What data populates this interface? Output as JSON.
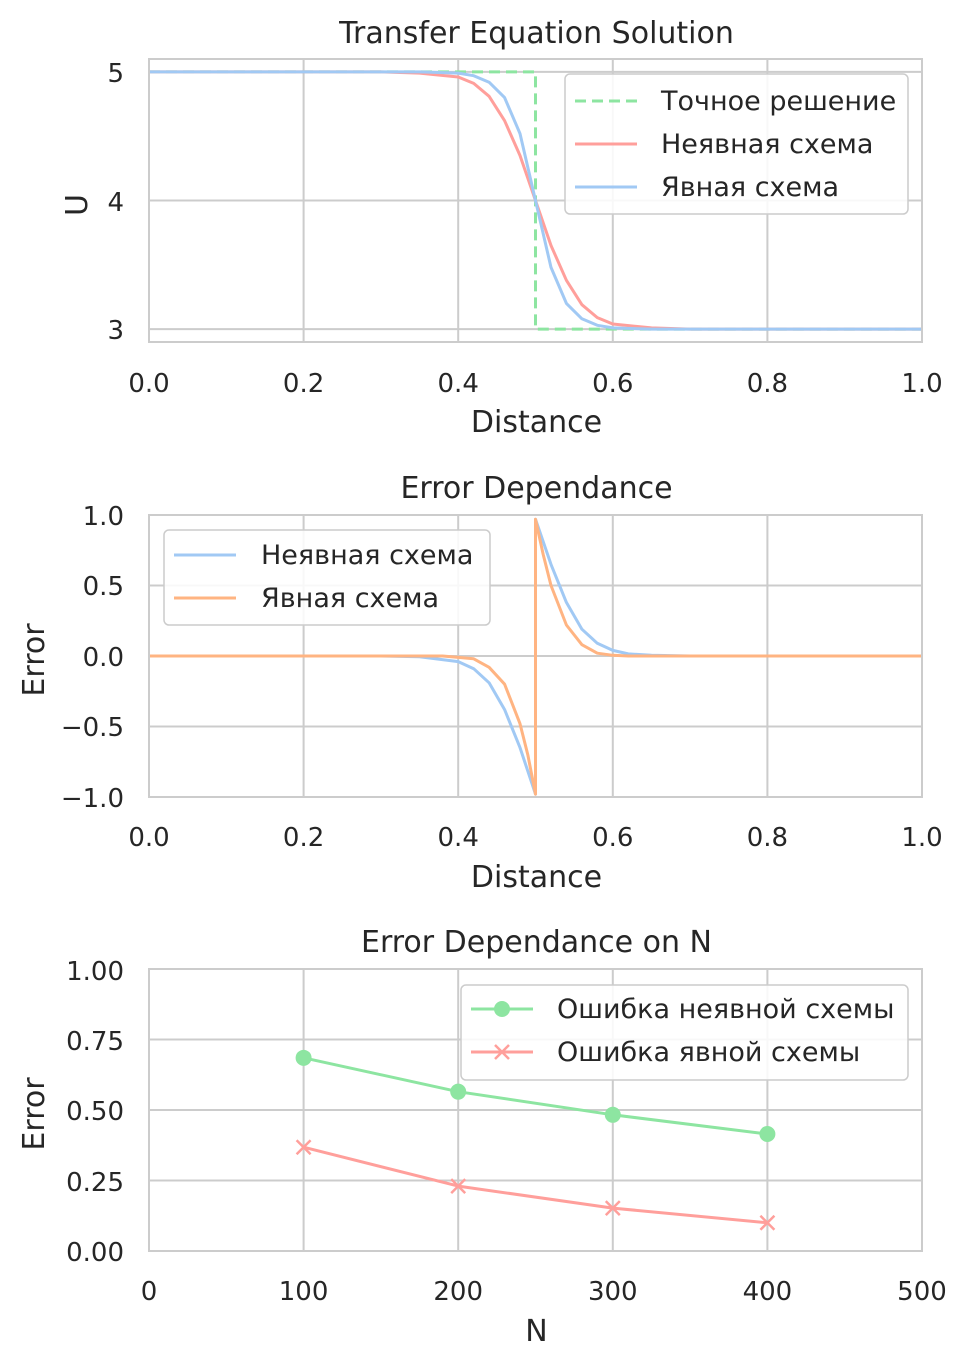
{
  "chart_data": [
    {
      "type": "line",
      "title": "Transfer Equation Solution",
      "xlabel": "Distance",
      "ylabel": "U",
      "xlim": [
        0,
        1
      ],
      "ylim": [
        2.9,
        5.1
      ],
      "xticks": [
        "0.0",
        "0.2",
        "0.4",
        "0.6",
        "0.8",
        "1.0"
      ],
      "yticks": [
        "3",
        "4",
        "5"
      ],
      "grid": true,
      "legend_position": "top-right",
      "series": [
        {
          "name": "Точное решение",
          "color": "#8de5a1",
          "dashed": true,
          "x": [
            0.0,
            0.5,
            0.5,
            1.0
          ],
          "y": [
            5.0,
            5.0,
            3.0,
            3.0
          ]
        },
        {
          "name": "Неявная схема",
          "color": "#ff9f9b",
          "x": [
            0.0,
            0.3,
            0.35,
            0.4,
            0.42,
            0.44,
            0.46,
            0.48,
            0.5,
            0.52,
            0.54,
            0.56,
            0.58,
            0.6,
            0.65,
            0.7,
            1.0
          ],
          "y": [
            5.0,
            5.0,
            4.99,
            4.96,
            4.91,
            4.81,
            4.62,
            4.35,
            4.0,
            3.65,
            3.38,
            3.19,
            3.09,
            3.04,
            3.01,
            3.0,
            3.0
          ]
        },
        {
          "name": "Явная схема",
          "color": "#a1c9f4",
          "x": [
            0.0,
            0.35,
            0.4,
            0.42,
            0.44,
            0.46,
            0.48,
            0.5,
            0.52,
            0.54,
            0.56,
            0.58,
            0.6,
            0.65,
            1.0
          ],
          "y": [
            5.0,
            5.0,
            4.99,
            4.97,
            4.92,
            4.8,
            4.52,
            4.0,
            3.48,
            3.2,
            3.08,
            3.03,
            3.01,
            3.0,
            3.0
          ]
        }
      ]
    },
    {
      "type": "line",
      "title": "Error Dependance",
      "xlabel": "Distance",
      "ylabel": "Error",
      "xlim": [
        0,
        1
      ],
      "ylim": [
        -1,
        1
      ],
      "xticks": [
        "0.0",
        "0.2",
        "0.4",
        "0.6",
        "0.8",
        "1.0"
      ],
      "yticks": [
        "1.0",
        "0.5",
        "0.0",
        "−0.5",
        "−1.0"
      ],
      "grid": true,
      "legend_position": "top-left",
      "series": [
        {
          "name": "Неявная схема",
          "color": "#a1c9f4",
          "x": [
            0.0,
            0.3,
            0.35,
            0.4,
            0.42,
            0.44,
            0.46,
            0.48,
            0.5,
            0.5,
            0.52,
            0.54,
            0.56,
            0.58,
            0.6,
            0.62,
            0.65,
            0.7,
            1.0
          ],
          "y": [
            0.0,
            0.0,
            -0.005,
            -0.04,
            -0.09,
            -0.19,
            -0.38,
            -0.65,
            -0.98,
            0.97,
            0.65,
            0.38,
            0.19,
            0.09,
            0.04,
            0.015,
            0.005,
            0.0,
            0.0
          ]
        },
        {
          "name": "Явная схема",
          "color": "#ffb482",
          "x": [
            0.0,
            0.38,
            0.42,
            0.44,
            0.46,
            0.48,
            0.49,
            0.5,
            0.5,
            0.51,
            0.52,
            0.54,
            0.56,
            0.58,
            0.6,
            0.62,
            1.0
          ],
          "y": [
            0.0,
            0.0,
            -0.02,
            -0.08,
            -0.2,
            -0.48,
            -0.7,
            -0.98,
            0.97,
            0.72,
            0.5,
            0.22,
            0.08,
            0.02,
            0.005,
            0.0,
            0.0
          ]
        }
      ]
    },
    {
      "type": "line",
      "title": "Error Dependance on N",
      "xlabel": "N",
      "ylabel": "Error",
      "xlim": [
        0,
        500
      ],
      "ylim": [
        0,
        1
      ],
      "xticks": [
        "0",
        "100",
        "200",
        "300",
        "400",
        "500"
      ],
      "yticks": [
        "1.00",
        "0.75",
        "0.50",
        "0.25",
        "0.00"
      ],
      "grid": true,
      "legend_position": "top-right",
      "series": [
        {
          "name": "Ошибка неявной схемы",
          "color": "#8de5a1",
          "marker": "circle",
          "x": [
            100,
            200,
            300,
            400
          ],
          "y": [
            0.685,
            0.565,
            0.483,
            0.415
          ]
        },
        {
          "name": "Ошибка явной схемы",
          "color": "#ff9f9b",
          "marker": "x",
          "x": [
            100,
            200,
            300,
            400
          ],
          "y": [
            0.368,
            0.23,
            0.152,
            0.1
          ]
        }
      ]
    }
  ]
}
